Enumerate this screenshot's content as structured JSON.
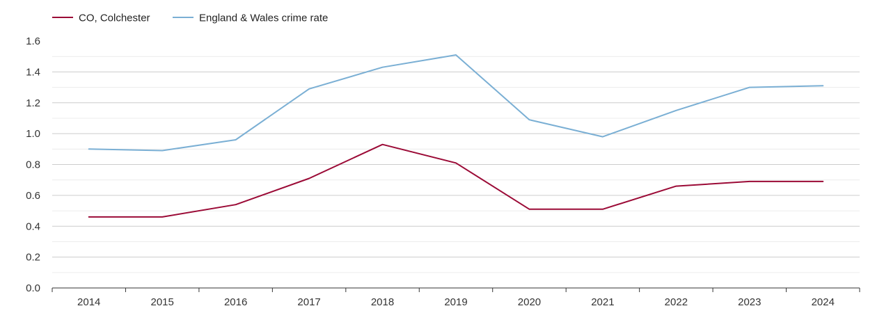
{
  "chart_data": {
    "type": "line",
    "title": "",
    "xlabel": "",
    "ylabel": "",
    "categories": [
      "2014",
      "2015",
      "2016",
      "2017",
      "2018",
      "2019",
      "2020",
      "2021",
      "2022",
      "2023",
      "2024"
    ],
    "ylim": [
      0,
      1.6
    ],
    "yticks": [
      "0.0",
      "0.2",
      "0.4",
      "0.6",
      "0.8",
      "1.0",
      "1.2",
      "1.4",
      "1.6"
    ],
    "grid": true,
    "legend_position": "top-left",
    "series": [
      {
        "name": "CO, Colchester",
        "color": "#9b0a36",
        "values": [
          0.46,
          0.46,
          0.54,
          0.71,
          0.93,
          0.81,
          0.51,
          0.51,
          0.66,
          0.69,
          0.69
        ]
      },
      {
        "name": "England & Wales crime rate",
        "color": "#7aafd4",
        "values": [
          0.9,
          0.89,
          0.96,
          1.29,
          1.43,
          1.51,
          1.09,
          0.98,
          1.15,
          1.3,
          1.31
        ]
      }
    ]
  }
}
